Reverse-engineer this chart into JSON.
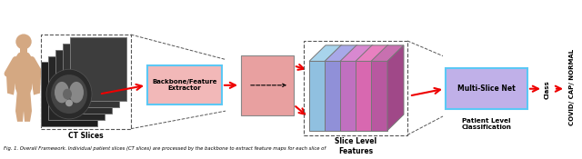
{
  "bg_color": "#ffffff",
  "human_color": "#d4a882",
  "human_outline": "#c8a070",
  "ct_images_label": "CT Slices",
  "backbone_label": "Backbone/Feature\nExtractor",
  "backbone_fill": "#f2b8b8",
  "backbone_edge": "#5bc8f5",
  "single_feature_fill": "#e8a0a0",
  "single_feature_edge": "#888888",
  "slice_features_label": "Slice Level\nFeatures",
  "bar_colors_front": [
    "#90c0e0",
    "#9090d8",
    "#c070c0",
    "#d868b0",
    "#b858a0"
  ],
  "bar_colors_top": [
    "#a8d4ec",
    "#a8a8e8",
    "#d888d0",
    "#e880c0",
    "#c870b0"
  ],
  "bar_colors_right": [
    "#7aacc8",
    "#7878c0",
    "#a858a8",
    "#c05898",
    "#a04888"
  ],
  "multislice_label": "Multi-Slice Net",
  "multislice_fill": "#c0b0e8",
  "multislice_edge": "#5bc8f5",
  "patient_level_label": "Patient Level\nClassification",
  "class_label": "Class",
  "output_label": "COVID/ CAP/ NORMAL",
  "arrow_color": "#ee0000",
  "dashed_color": "#555555",
  "caption": "Fig. 1. Overall Framework. Individual patient slices (CT slices) are processed by the backbone to extract feature maps for each slice of"
}
